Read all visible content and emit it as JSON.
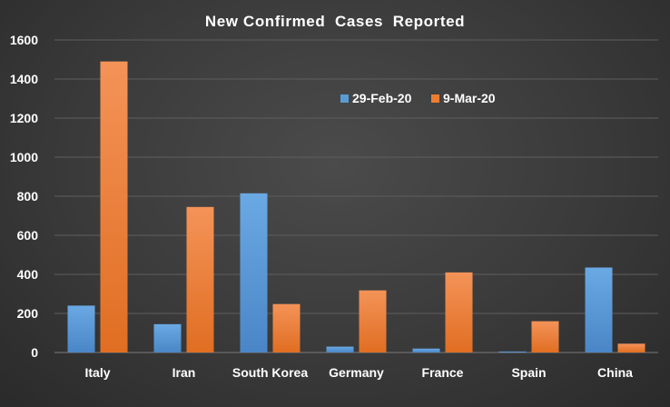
{
  "chart_data": {
    "type": "bar",
    "title": "New Confirmed  Cases  Reported",
    "xlabel": "",
    "ylabel": "",
    "categories": [
      "Italy",
      "Iran",
      "South Korea",
      "Germany",
      "France",
      "Spain",
      "China"
    ],
    "series": [
      {
        "name": "29-Feb-20",
        "color": "#5b9bd5",
        "values": [
          240,
          145,
          815,
          30,
          20,
          5,
          435
        ]
      },
      {
        "name": "9-Mar-20",
        "color": "#ed7d31",
        "values": [
          1490,
          745,
          248,
          318,
          410,
          160,
          45
        ]
      }
    ],
    "ylim": [
      0,
      1600
    ],
    "yticks": [
      0,
      200,
      400,
      600,
      800,
      1000,
      1200,
      1400,
      1600
    ],
    "grid": true,
    "legend_position": "top-center"
  }
}
